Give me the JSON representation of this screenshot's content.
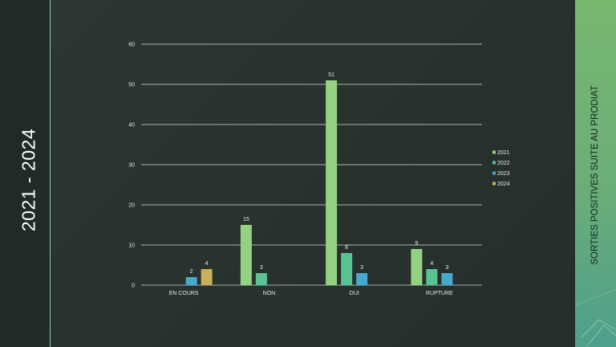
{
  "slide": {
    "left_title": "2021 - 2024",
    "right_title": "SORTIES POSITIVES  SUITE AU PRODIAT"
  },
  "colors": {
    "background": "#2b3330",
    "accent_green": "#79b871",
    "rule": "#86c4c0"
  },
  "chart_data": {
    "type": "bar",
    "categories": [
      "EN COURS",
      "NON",
      "OUI",
      "RUPTURE"
    ],
    "series": [
      {
        "name": "2021",
        "color": "#92d281",
        "values": [
          null,
          15,
          51,
          9
        ]
      },
      {
        "name": "2022",
        "color": "#5ac393",
        "values": [
          null,
          3,
          8,
          4
        ]
      },
      {
        "name": "2023",
        "color": "#47a9ce",
        "values": [
          2,
          null,
          3,
          3
        ]
      },
      {
        "name": "2024",
        "color": "#c9b15a",
        "values": [
          4,
          null,
          null,
          null
        ]
      }
    ],
    "ylim": [
      0,
      60
    ],
    "yticks": [
      0,
      10,
      20,
      30,
      40,
      50,
      60
    ],
    "grid": true,
    "legend": "right",
    "data_labels": true
  }
}
